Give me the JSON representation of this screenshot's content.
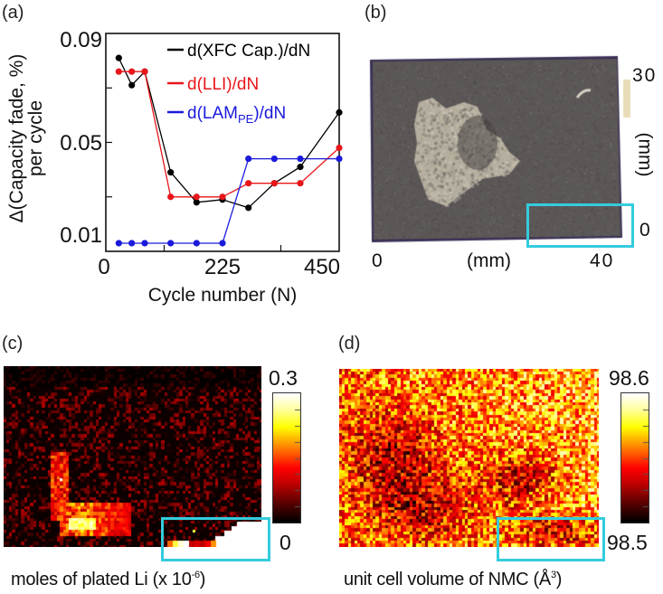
{
  "panels": {
    "a": {
      "label": "(a)"
    },
    "b": {
      "label": "(b)",
      "x_axis": {
        "min_label": "0",
        "unit_label": "(mm)",
        "max_label": "40"
      },
      "y_axis": {
        "max_label": "30",
        "unit_label": "(mm)",
        "min_label": "0"
      },
      "colors": {
        "electrode": "#5c5757",
        "plating": "#b5ae9e",
        "highlight_box": "#33ccdd"
      }
    },
    "c": {
      "label": "(c)",
      "colorbar": {
        "max_label": "0.3",
        "min_label": "0",
        "max": 0.3,
        "min": 0
      },
      "caption_main": "moles of plated Li (x 10",
      "caption_sup": "-6",
      "caption_end": ")",
      "colormap": [
        "#000000",
        "#5a0000",
        "#c00000",
        "#ff0000",
        "#ff8000",
        "#ffff00",
        "#ffffa0",
        "#ffffff"
      ]
    },
    "d": {
      "label": "(d)",
      "colorbar": {
        "max_label": "98.6",
        "min_label": "98.5",
        "max": 98.6,
        "min": 98.5
      },
      "caption_main": "unit cell volume of NMC (Å",
      "caption_sup": "3",
      "caption_end": ")",
      "colormap": [
        "#000000",
        "#5a0000",
        "#c00000",
        "#ff0000",
        "#ff8000",
        "#ffff00",
        "#ffffa0",
        "#ffffff"
      ]
    }
  },
  "chart_data": {
    "type": "line",
    "title": "",
    "xlabel": "Cycle number (N)",
    "ylabel": "Δ(Capacity fade, %)",
    "ylabel_line2": "per cycle",
    "xlim": [
      0,
      450
    ],
    "ylim": [
      0.01,
      0.09
    ],
    "xticks": [
      0,
      225,
      450
    ],
    "xtick_labels": [
      "0",
      "225",
      "450"
    ],
    "x_minor_ticks": [
      112.5,
      337.5
    ],
    "yticks": [
      0.01,
      0.05,
      0.09
    ],
    "ytick_labels": [
      "0.01",
      "0.05",
      "0.09"
    ],
    "y_minor_ticks": [
      0.03,
      0.07
    ],
    "grid": false,
    "legend_position": "top-right",
    "x": [
      25,
      50,
      75,
      125,
      175,
      225,
      275,
      325,
      375,
      450
    ],
    "series": [
      {
        "name": "d(XFC Cap.)/dN",
        "legend_main": "d(XFC Cap.)/dN",
        "legend_sub": "",
        "legend_end": "",
        "color": "#000000",
        "values": [
          0.081,
          0.071,
          0.076,
          0.039,
          0.028,
          0.029,
          0.026,
          0.035,
          0.041,
          0.061
        ]
      },
      {
        "name": "d(LLI)/dN",
        "legend_main": "d(LLI)/dN",
        "legend_sub": "",
        "legend_end": "",
        "color": "#e8161b",
        "values": [
          0.076,
          0.076,
          0.076,
          0.03,
          0.03,
          0.03,
          0.035,
          0.035,
          0.035,
          0.048
        ]
      },
      {
        "name": "d(LAM_PE)/dN",
        "legend_main": "d(LAM",
        "legend_sub": "PE",
        "legend_end": ")/dN",
        "color": "#1a1adc",
        "values": [
          0.013,
          0.013,
          0.013,
          0.013,
          0.013,
          0.013,
          0.044,
          0.044,
          0.044,
          0.044
        ]
      }
    ]
  }
}
